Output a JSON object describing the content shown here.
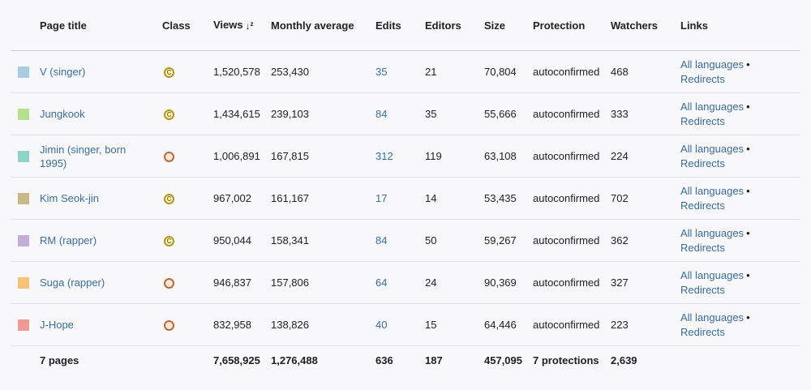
{
  "headers": {
    "page_title": "Page title",
    "class": "Class",
    "views": "Views",
    "monthly_average": "Monthly average",
    "edits": "Edits",
    "editors": "Editors",
    "size": "Size",
    "protection": "Protection",
    "watchers": "Watchers",
    "links": "Links"
  },
  "rows": [
    {
      "swatch": "#a9cce3",
      "title": "V (singer)",
      "class": "C-class",
      "class_icon": "c-class-icon",
      "views": "1,520,578",
      "monthly_average": "253,430",
      "edits": "35",
      "editors": "21",
      "size": "70,804",
      "protection": "autoconfirmed",
      "watchers": "468",
      "link_languages": "All languages",
      "link_redirects": "Redirects",
      "separator": "•"
    },
    {
      "swatch": "#b5e08f",
      "title": "Jungkook",
      "class": "C-class",
      "class_icon": "c-class-icon",
      "views": "1,434,615",
      "monthly_average": "239,103",
      "edits": "84",
      "editors": "35",
      "size": "55,666",
      "protection": "autoconfirmed",
      "watchers": "333",
      "link_languages": "All languages",
      "link_redirects": "Redirects",
      "separator": "•"
    },
    {
      "swatch": "#8fd3c8",
      "title": "Jimin (singer, born 1995)",
      "class": "Start-class",
      "class_icon": "start-class-icon",
      "views": "1,006,891",
      "monthly_average": "167,815",
      "edits": "312",
      "editors": "119",
      "size": "63,108",
      "protection": "autoconfirmed",
      "watchers": "224",
      "link_languages": "All languages",
      "link_redirects": "Redirects",
      "separator": "•"
    },
    {
      "swatch": "#c9b98a",
      "title": "Kim Seok-jin",
      "class": "C-class",
      "class_icon": "c-class-icon",
      "views": "967,002",
      "monthly_average": "161,167",
      "edits": "17",
      "editors": "14",
      "size": "53,435",
      "protection": "autoconfirmed",
      "watchers": "702",
      "link_languages": "All languages",
      "link_redirects": "Redirects",
      "separator": "•"
    },
    {
      "swatch": "#c4add6",
      "title": "RM (rapper)",
      "class": "C-class",
      "class_icon": "c-class-icon",
      "views": "950,044",
      "monthly_average": "158,341",
      "edits": "84",
      "editors": "50",
      "size": "59,267",
      "protection": "autoconfirmed",
      "watchers": "362",
      "link_languages": "All languages",
      "link_redirects": "Redirects",
      "separator": "•"
    },
    {
      "swatch": "#f6c27a",
      "title": "Suga (rapper)",
      "class": "Start-class",
      "class_icon": "start-class-icon",
      "views": "946,837",
      "monthly_average": "157,806",
      "edits": "64",
      "editors": "24",
      "size": "90,369",
      "protection": "autoconfirmed",
      "watchers": "327",
      "link_languages": "All languages",
      "link_redirects": "Redirects",
      "separator": "•"
    },
    {
      "swatch": "#ee9b96",
      "title": "J-Hope",
      "class": "Start-class",
      "class_icon": "start-class-icon",
      "views": "832,958",
      "monthly_average": "138,826",
      "edits": "40",
      "editors": "15",
      "size": "64,446",
      "protection": "autoconfirmed",
      "watchers": "223",
      "link_languages": "All languages",
      "link_redirects": "Redirects",
      "separator": "•"
    }
  ],
  "totals": {
    "pages": "7 pages",
    "views": "7,658,925",
    "monthly_average": "1,276,488",
    "edits": "636",
    "editors": "187",
    "size": "457,095",
    "protection": "7 protections",
    "watchers": "2,639"
  },
  "icons": {
    "sort": "sort-descending-icon"
  }
}
